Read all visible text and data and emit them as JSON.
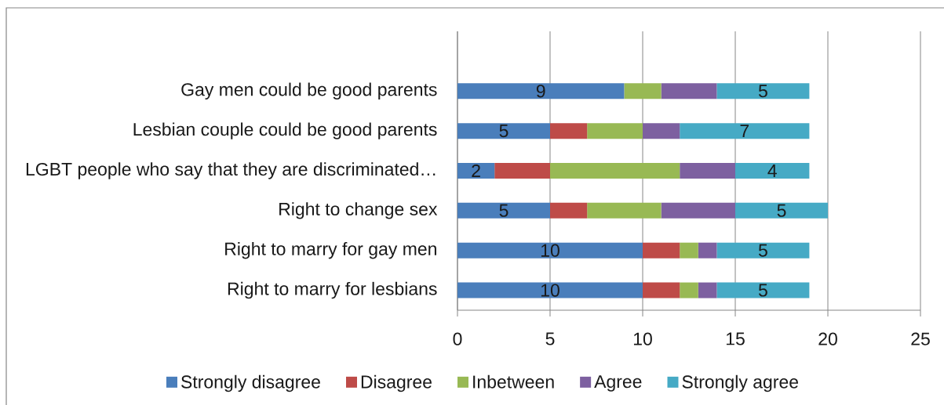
{
  "chart_data": {
    "type": "bar",
    "orientation": "horizontal",
    "stacked": true,
    "categories": [
      null,
      "Gay men could be good parents",
      "Lesbian couple could be good parents",
      "LGBT people who say that they are discriminated…",
      "Right to change sex",
      "Right to marry for gay men",
      "Right to marry for lesbians"
    ],
    "series": [
      {
        "name": "Strongly disagree",
        "color": "#4a7ebb",
        "values": [
          null,
          9,
          5,
          2,
          5,
          10,
          10
        ],
        "value_labels": [
          null,
          "9",
          "5",
          "2",
          "5",
          "10",
          "10"
        ]
      },
      {
        "name": "Disagree",
        "color": "#be4b48",
        "values": [
          null,
          0,
          2,
          3,
          2,
          2,
          2
        ]
      },
      {
        "name": "Inbetween",
        "color": "#98b954",
        "values": [
          null,
          2,
          3,
          7,
          4,
          1,
          1
        ]
      },
      {
        "name": "Agree",
        "color": "#7d60a0",
        "values": [
          null,
          3,
          2,
          3,
          4,
          1,
          1
        ]
      },
      {
        "name": "Strongly agree",
        "color": "#46aac5",
        "values": [
          null,
          5,
          7,
          4,
          5,
          5,
          5
        ],
        "value_labels": [
          null,
          "5",
          "7",
          "4",
          "5",
          "5",
          "5"
        ]
      }
    ],
    "xlim": [
      0,
      25
    ],
    "xticks": [
      0,
      5,
      10,
      15,
      20,
      25
    ],
    "grid": "x",
    "legend": "bottom"
  }
}
